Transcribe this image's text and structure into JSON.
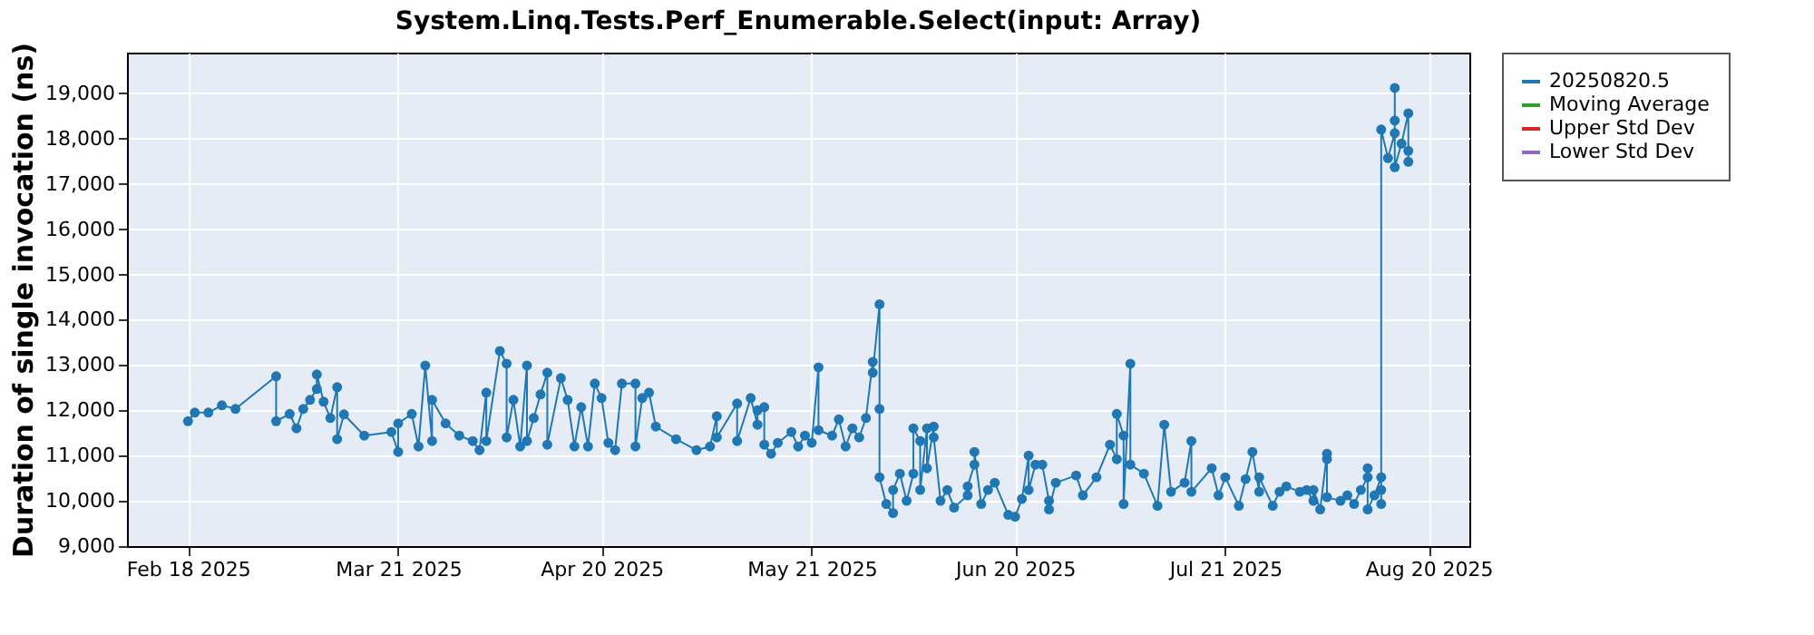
{
  "chart_data": {
    "type": "line",
    "title": "System.Linq.Tests.Perf_Enumerable.Select(input: Array)",
    "ylabel": "Duration of single invocation (ns)",
    "xlim": [
      "2025-02-09",
      "2025-08-26"
    ],
    "ylim": [
      9000,
      19900
    ],
    "xticks": [
      {
        "value": "2025-02-18",
        "label": "Feb 18 2025"
      },
      {
        "value": "2025-03-21",
        "label": "Mar 21 2025"
      },
      {
        "value": "2025-04-20",
        "label": "Apr 20 2025"
      },
      {
        "value": "2025-05-21",
        "label": "May 21 2025"
      },
      {
        "value": "2025-06-20",
        "label": "Jun 20 2025"
      },
      {
        "value": "2025-07-21",
        "label": "Jul 21 2025"
      },
      {
        "value": "2025-08-20",
        "label": "Aug 20 2025"
      }
    ],
    "yticks": [
      {
        "value": 9000,
        "label": "9,000"
      },
      {
        "value": 10000,
        "label": "10,000"
      },
      {
        "value": 11000,
        "label": "11,000"
      },
      {
        "value": 12000,
        "label": "12,000"
      },
      {
        "value": 13000,
        "label": "13,000"
      },
      {
        "value": 14000,
        "label": "14,000"
      },
      {
        "value": 15000,
        "label": "15,000"
      },
      {
        "value": 16000,
        "label": "16,000"
      },
      {
        "value": 17000,
        "label": "17,000"
      },
      {
        "value": 18000,
        "label": "18,000"
      },
      {
        "value": 19000,
        "label": "19,000"
      }
    ],
    "grid": true,
    "legend": "right",
    "marker": "circle",
    "line_style": "solid",
    "series": [
      {
        "name": "20250820.5",
        "color": "#1f77b4",
        "x": [
          "2025-02-18",
          "2025-02-19",
          "2025-02-21",
          "2025-02-23",
          "2025-02-25",
          "2025-03-03",
          "2025-03-03",
          "2025-03-05",
          "2025-03-06",
          "2025-03-07",
          "2025-03-08",
          "2025-03-09",
          "2025-03-09",
          "2025-03-10",
          "2025-03-11",
          "2025-03-12",
          "2025-03-12",
          "2025-03-13",
          "2025-03-16",
          "2025-03-20",
          "2025-03-21",
          "2025-03-21",
          "2025-03-23",
          "2025-03-24",
          "2025-03-25",
          "2025-03-26",
          "2025-03-26",
          "2025-03-28",
          "2025-03-30",
          "2025-04-01",
          "2025-04-02",
          "2025-04-03",
          "2025-04-03",
          "2025-04-05",
          "2025-04-06",
          "2025-04-06",
          "2025-04-07",
          "2025-04-08",
          "2025-04-09",
          "2025-04-09",
          "2025-04-10",
          "2025-04-11",
          "2025-04-12",
          "2025-04-12",
          "2025-04-14",
          "2025-04-15",
          "2025-04-16",
          "2025-04-17",
          "2025-04-18",
          "2025-04-19",
          "2025-04-20",
          "2025-04-21",
          "2025-04-22",
          "2025-04-23",
          "2025-04-25",
          "2025-04-25",
          "2025-04-26",
          "2025-04-27",
          "2025-04-28",
          "2025-05-01",
          "2025-05-04",
          "2025-05-06",
          "2025-05-07",
          "2025-05-07",
          "2025-05-10",
          "2025-05-10",
          "2025-05-12",
          "2025-05-13",
          "2025-05-13",
          "2025-05-14",
          "2025-05-14",
          "2025-05-15",
          "2025-05-16",
          "2025-05-18",
          "2025-05-19",
          "2025-05-20",
          "2025-05-21",
          "2025-05-22",
          "2025-05-22",
          "2025-05-24",
          "2025-05-25",
          "2025-05-26",
          "2025-05-27",
          "2025-05-28",
          "2025-05-29",
          "2025-05-30",
          "2025-05-30",
          "2025-05-31",
          "2025-05-31",
          "2025-05-31",
          "2025-06-01",
          "2025-06-02",
          "2025-06-02",
          "2025-06-03",
          "2025-06-04",
          "2025-06-05",
          "2025-06-05",
          "2025-06-06",
          "2025-06-06",
          "2025-06-07",
          "2025-06-07",
          "2025-06-08",
          "2025-06-08",
          "2025-06-09",
          "2025-06-10",
          "2025-06-11",
          "2025-06-13",
          "2025-06-13",
          "2025-06-14",
          "2025-06-14",
          "2025-06-15",
          "2025-06-16",
          "2025-06-17",
          "2025-06-19",
          "2025-06-20",
          "2025-06-21",
          "2025-06-22",
          "2025-06-22",
          "2025-06-23",
          "2025-06-24",
          "2025-06-25",
          "2025-06-25",
          "2025-06-26",
          "2025-06-29",
          "2025-06-30",
          "2025-07-02",
          "2025-07-04",
          "2025-07-05",
          "2025-07-05",
          "2025-07-06",
          "2025-07-06",
          "2025-07-07",
          "2025-07-07",
          "2025-07-09",
          "2025-07-11",
          "2025-07-12",
          "2025-07-13",
          "2025-07-15",
          "2025-07-16",
          "2025-07-16",
          "2025-07-19",
          "2025-07-20",
          "2025-07-21",
          "2025-07-23",
          "2025-07-24",
          "2025-07-25",
          "2025-07-26",
          "2025-07-26",
          "2025-07-28",
          "2025-07-29",
          "2025-07-30",
          "2025-08-01",
          "2025-08-02",
          "2025-08-03",
          "2025-08-03",
          "2025-08-04",
          "2025-08-05",
          "2025-08-05",
          "2025-08-05",
          "2025-08-07",
          "2025-08-08",
          "2025-08-09",
          "2025-08-10",
          "2025-08-11",
          "2025-08-11",
          "2025-08-11",
          "2025-08-12",
          "2025-08-13",
          "2025-08-13",
          "2025-08-13",
          "2025-08-13",
          "2025-08-14",
          "2025-08-15",
          "2025-08-15",
          "2025-08-15",
          "2025-08-15",
          "2025-08-16",
          "2025-08-17",
          "2025-08-17",
          "2025-08-17"
        ],
        "values": [
          11760,
          11950,
          11950,
          12110,
          12030,
          12750,
          11760,
          11920,
          11600,
          12030,
          12230,
          12470,
          12790,
          12190,
          11830,
          12510,
          11360,
          11910,
          11440,
          11520,
          11080,
          11710,
          11920,
          11200,
          12990,
          11320,
          12230,
          11710,
          11440,
          11320,
          11120,
          12390,
          11320,
          13310,
          13030,
          11400,
          12230,
          11200,
          12990,
          11320,
          11830,
          12350,
          12830,
          11240,
          12710,
          12230,
          11200,
          12070,
          11200,
          12590,
          12270,
          11280,
          11120,
          12590,
          12590,
          11200,
          12270,
          12390,
          11640,
          11360,
          11120,
          11200,
          11870,
          11400,
          12150,
          11320,
          12270,
          11680,
          12000,
          12070,
          11240,
          11040,
          11280,
          11520,
          11200,
          11440,
          11280,
          12950,
          11560,
          11440,
          11800,
          11200,
          11600,
          11400,
          11830,
          13070,
          12830,
          14340,
          12030,
          10520,
          9930,
          9730,
          10240,
          10600,
          10000,
          10600,
          11600,
          11320,
          10240,
          11600,
          10720,
          11640,
          11400,
          10000,
          10240,
          9850,
          10120,
          10320,
          10800,
          11080,
          9930,
          10240,
          10400,
          9690,
          9650,
          10040,
          11000,
          10240,
          10800,
          10800,
          10000,
          9810,
          10400,
          10560,
          10120,
          10520,
          11240,
          10920,
          11920,
          11440,
          9930,
          13030,
          10800,
          10600,
          9890,
          11680,
          10200,
          10400,
          11320,
          10200,
          10720,
          10120,
          10520,
          9890,
          10480,
          11080,
          10200,
          10520,
          9890,
          10200,
          10320,
          10200,
          10240,
          10000,
          10240,
          9810,
          11040,
          10920,
          10080,
          10000,
          10120,
          9930,
          10240,
          10520,
          10720,
          9810,
          10120,
          10520,
          9930,
          10240,
          18200,
          17570,
          18120,
          18400,
          19120,
          17370,
          17890,
          18560,
          17490,
          17730
        ]
      },
      {
        "name": "Moving Average",
        "color": "#2ca02c"
      },
      {
        "name": "Upper Std Dev",
        "color": "#d62728"
      },
      {
        "name": "Lower Std Dev",
        "color": "#9467bd"
      }
    ]
  }
}
